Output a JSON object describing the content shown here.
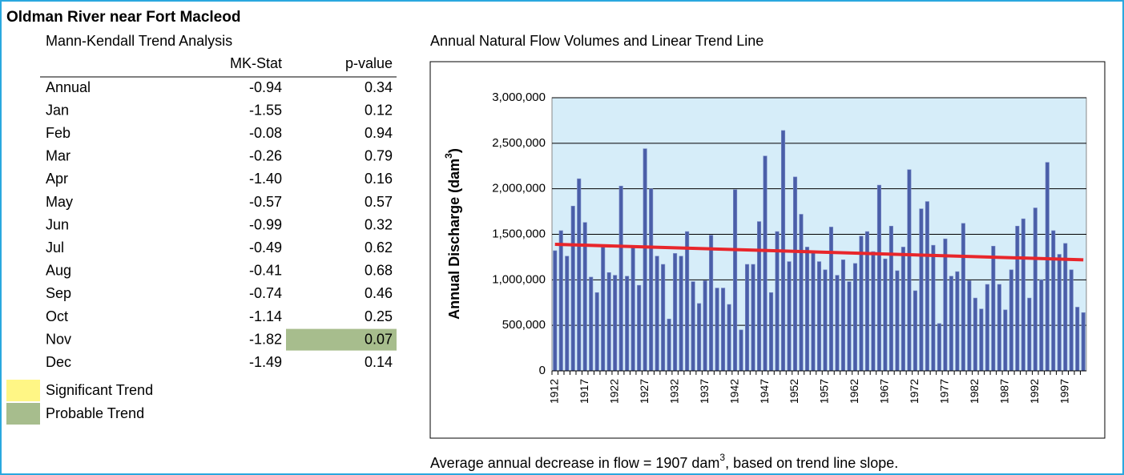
{
  "title": "Oldman River near Fort Macleod",
  "table": {
    "title": "Mann-Kendall Trend Analysis",
    "columns": [
      "MK-Stat",
      "p-value"
    ],
    "rows": [
      {
        "name": "Annual",
        "mk": "-0.94",
        "p": "0.34"
      },
      {
        "name": "Jan",
        "mk": "-1.55",
        "p": "0.12"
      },
      {
        "name": "Feb",
        "mk": "-0.08",
        "p": "0.94"
      },
      {
        "name": "Mar",
        "mk": "-0.26",
        "p": "0.79"
      },
      {
        "name": "Apr",
        "mk": "-1.40",
        "p": "0.16"
      },
      {
        "name": "May",
        "mk": "-0.57",
        "p": "0.57"
      },
      {
        "name": "Jun",
        "mk": "-0.99",
        "p": "0.32"
      },
      {
        "name": "Jul",
        "mk": "-0.49",
        "p": "0.62"
      },
      {
        "name": "Aug",
        "mk": "-0.41",
        "p": "0.68"
      },
      {
        "name": "Sep",
        "mk": "-0.74",
        "p": "0.46"
      },
      {
        "name": "Oct",
        "mk": "-1.14",
        "p": "0.25"
      },
      {
        "name": "Nov",
        "mk": "-1.82",
        "p": "0.07",
        "highlight": 1
      },
      {
        "name": "Dec",
        "mk": "-1.49",
        "p": "0.14"
      }
    ]
  },
  "legend": [
    {
      "label": "Significant Trend",
      "color": "#fff685"
    },
    {
      "label": "Probable Trend",
      "color": "#a7bd8d"
    }
  ],
  "chart_data": {
    "type": "bar",
    "title": "Annual Natural Flow Volumes and Linear Trend Line",
    "ylabel": [
      "Annual Discharge (dam",
      "3",
      ")"
    ],
    "note": [
      "Average annual decrease in flow = 1907 dam",
      "3",
      ", based on trend line slope."
    ],
    "categories": [
      "1912",
      null,
      null,
      null,
      null,
      "1917",
      null,
      null,
      null,
      null,
      "1922",
      null,
      null,
      null,
      null,
      "1927",
      null,
      null,
      null,
      null,
      "1932",
      null,
      null,
      null,
      null,
      "1937",
      null,
      null,
      null,
      null,
      "1942",
      null,
      null,
      null,
      null,
      "1947",
      null,
      null,
      null,
      null,
      "1952",
      null,
      null,
      null,
      null,
      "1957",
      null,
      null,
      null,
      null,
      "1962",
      null,
      null,
      null,
      null,
      "1967",
      null,
      null,
      null,
      null,
      "1972",
      null,
      null,
      null,
      null,
      "1977",
      null,
      null,
      null,
      null,
      "1982",
      null,
      null,
      null,
      null,
      "1987",
      null,
      null,
      null,
      null,
      "1992",
      null,
      null,
      null,
      null,
      "1997",
      null,
      null,
      null
    ],
    "values": [
      1320000,
      1540000,
      1260000,
      1810000,
      2110000,
      1630000,
      1030000,
      860000,
      1360000,
      1080000,
      1050000,
      2030000,
      1040000,
      1360000,
      940000,
      2440000,
      2000000,
      1260000,
      1170000,
      570000,
      1290000,
      1260000,
      1530000,
      980000,
      740000,
      990000,
      1490000,
      910000,
      910000,
      730000,
      1990000,
      450000,
      1170000,
      1170000,
      1640000,
      2360000,
      860000,
      1530000,
      2640000,
      1200000,
      2130000,
      1720000,
      1360000,
      1320000,
      1200000,
      1110000,
      1580000,
      1050000,
      1220000,
      980000,
      1180000,
      1480000,
      1530000,
      1310000,
      2040000,
      1230000,
      1590000,
      1100000,
      1360000,
      2210000,
      880000,
      1780000,
      1860000,
      1380000,
      520000,
      1450000,
      1040000,
      1090000,
      1620000,
      990000,
      800000,
      680000,
      950000,
      1370000,
      950000,
      670000,
      1110000,
      1590000,
      1670000,
      800000,
      1790000,
      1000000,
      2290000,
      1540000,
      1280000,
      1400000,
      1110000,
      700000,
      640000
    ],
    "color": "#4a5ea8",
    "trend": {
      "color": "#e8262b",
      "values": [
        1390000,
        1220000
      ]
    },
    "ylim": [
      0,
      3000000
    ],
    "yticks": [
      0,
      {
        "value": 500000,
        "label": "500,000"
      },
      {
        "value": 1000000,
        "label": "1,000,000"
      },
      {
        "value": 1500000,
        "label": "1,500,000"
      },
      {
        "value": 2000000,
        "label": "2,000,000"
      },
      {
        "value": 2500000,
        "label": "2,500,000"
      },
      {
        "value": 3000000,
        "label": "3,000,000"
      }
    ],
    "grid": true,
    "plot_background": "#d6edf9"
  }
}
